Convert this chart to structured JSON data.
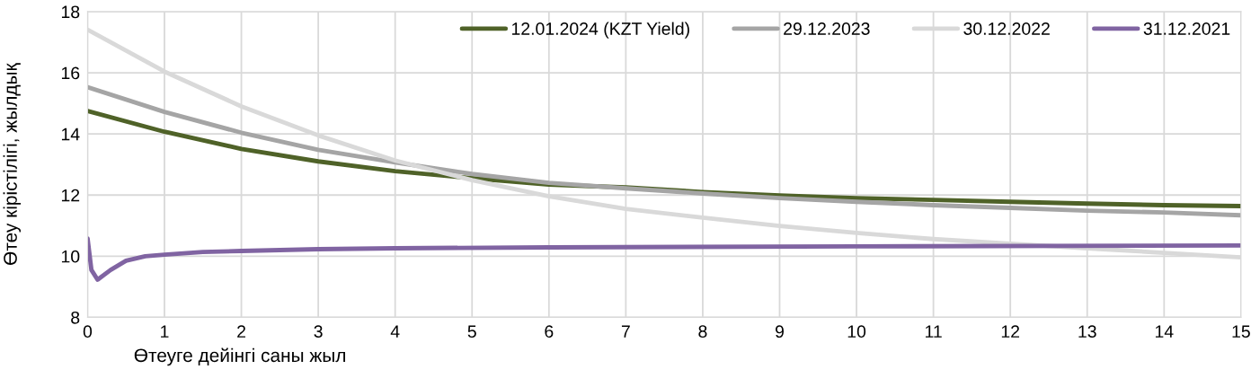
{
  "chart_data": {
    "type": "line",
    "xlabel": "Өтеуге дейінгі саны жыл",
    "ylabel": "Өтеу кірістілігі, жылдық",
    "xlim": [
      0,
      15
    ],
    "xticks": [
      0,
      1,
      2,
      3,
      4,
      5,
      6,
      7,
      8,
      9,
      10,
      11,
      12,
      13,
      14,
      15
    ],
    "ylim": [
      8,
      18
    ],
    "yticks": [
      8,
      10,
      12,
      14,
      16,
      18
    ],
    "grid": true,
    "legend": "top right",
    "marker": "none",
    "line_style": "solid",
    "series": [
      {
        "name": "12.01.2024 (KZT Yield)",
        "color": "#4f6228",
        "x": [
          0,
          1,
          2,
          3,
          4,
          5,
          6,
          7,
          8,
          9,
          10,
          11,
          12,
          13,
          14,
          15
        ],
        "values": [
          14.75,
          14.07,
          13.51,
          13.1,
          12.78,
          12.55,
          12.34,
          12.25,
          12.1,
          11.99,
          11.9,
          11.84,
          11.78,
          11.72,
          11.67,
          11.64
        ]
      },
      {
        "name": "29.12.2023",
        "color": "#a5a5a5",
        "x": [
          0,
          1,
          2,
          3,
          4,
          5,
          6,
          7,
          8,
          9,
          10,
          11,
          12,
          13,
          14,
          15
        ],
        "values": [
          15.53,
          14.72,
          14.04,
          13.48,
          13.07,
          12.69,
          12.4,
          12.22,
          12.05,
          11.9,
          11.78,
          11.67,
          11.58,
          11.49,
          11.43,
          11.34
        ]
      },
      {
        "name": "30.12.2022",
        "color": "#d9d9d9",
        "x": [
          0,
          1,
          2,
          3,
          4,
          5,
          6,
          7,
          8,
          9,
          10,
          11,
          12,
          13,
          14,
          15
        ],
        "values": [
          17.41,
          16.04,
          14.9,
          13.95,
          13.13,
          12.49,
          11.96,
          11.55,
          11.26,
          10.99,
          10.76,
          10.56,
          10.41,
          10.26,
          10.11,
          9.96
        ]
      },
      {
        "name": "31.12.2021",
        "color": "#8064a2",
        "x": [
          0,
          0.05,
          0.13,
          0.3,
          0.5,
          0.75,
          1,
          1.5,
          2,
          3,
          4,
          6,
          10,
          15
        ],
        "values": [
          10.58,
          9.55,
          9.23,
          9.55,
          9.85,
          10.0,
          10.05,
          10.14,
          10.17,
          10.23,
          10.26,
          10.29,
          10.32,
          10.35
        ]
      }
    ]
  }
}
